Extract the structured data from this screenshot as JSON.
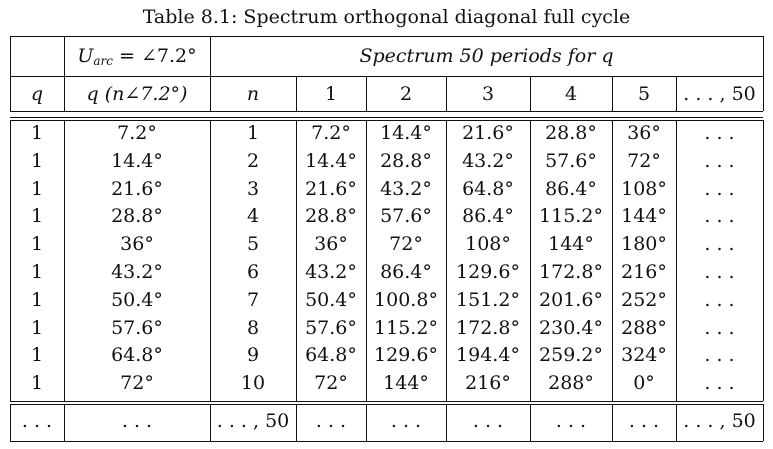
{
  "caption": "Table 8.1: Spectrum orthogonal diagonal full cycle",
  "header_top": {
    "uarc_label": "U",
    "uarc_sub": "arc",
    "uarc_value": " = ∠7.2°",
    "spectrum_label": "Spectrum 50 periods for q"
  },
  "columns": [
    "q",
    "q (n∠7.2°)",
    "n",
    "1",
    "2",
    "3",
    "4",
    "5",
    ". . . , 50"
  ],
  "rows": [
    [
      "1",
      "7.2°",
      "1",
      "7.2°",
      "14.4°",
      "21.6°",
      "28.8°",
      "36°",
      ". . ."
    ],
    [
      "1",
      "14.4°",
      "2",
      "14.4°",
      "28.8°",
      "43.2°",
      "57.6°",
      "72°",
      ". . ."
    ],
    [
      "1",
      "21.6°",
      "3",
      "21.6°",
      "43.2°",
      "64.8°",
      "86.4°",
      "108°",
      ". . ."
    ],
    [
      "1",
      "28.8°",
      "4",
      "28.8°",
      "57.6°",
      "86.4°",
      "115.2°",
      "144°",
      ". . ."
    ],
    [
      "1",
      "36°",
      "5",
      "36°",
      "72°",
      "108°",
      "144°",
      "180°",
      ". . ."
    ],
    [
      "1",
      "43.2°",
      "6",
      "43.2°",
      "86.4°",
      "129.6°",
      "172.8°",
      "216°",
      ". . ."
    ],
    [
      "1",
      "50.4°",
      "7",
      "50.4°",
      "100.8°",
      "151.2°",
      "201.6°",
      "252°",
      ". . ."
    ],
    [
      "1",
      "57.6°",
      "8",
      "57.6°",
      "115.2°",
      "172.8°",
      "230.4°",
      "288°",
      ". . ."
    ],
    [
      "1",
      "64.8°",
      "9",
      "64.8°",
      "129.6°",
      "194.4°",
      "259.2°",
      "324°",
      ". . ."
    ],
    [
      "1",
      "72°",
      "10",
      "72°",
      "144°",
      "216°",
      "288°",
      "0°",
      ". . ."
    ]
  ],
  "footer": [
    ". . .",
    ". . .",
    ". . . , 50",
    ". . .",
    ". . .",
    ". . .",
    ". . .",
    ". . .",
    ". . . , 50"
  ]
}
